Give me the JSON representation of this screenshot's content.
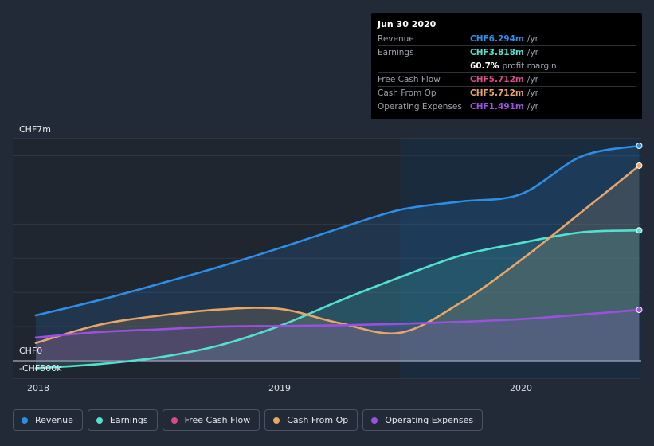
{
  "chart_data": {
    "type": "area",
    "x_ticks": [
      {
        "label": "2018",
        "x": 2018.0
      },
      {
        "label": "2019",
        "x": 2019.0
      },
      {
        "label": "2020",
        "x": 2020.0
      }
    ],
    "y_labels": [
      {
        "label": "CHF7m",
        "value": 7
      },
      {
        "label": "CHF0",
        "value": 0
      },
      {
        "label": "-CHF500k",
        "value": -0.5
      }
    ],
    "ylim": [
      -0.5,
      7
    ],
    "highlight_from": 2019.5,
    "series": [
      {
        "key": "revenue",
        "name": "Revenue",
        "color": "#2d8ee8",
        "x": [
          2017.99,
          2018.25,
          2018.5,
          2018.75,
          2019.0,
          2019.25,
          2019.5,
          2019.75,
          2020.0,
          2020.25,
          2020.49
        ],
        "values": [
          1.33,
          1.77,
          2.25,
          2.75,
          3.3,
          3.88,
          4.42,
          4.66,
          4.88,
          5.98,
          6.294
        ]
      },
      {
        "key": "earnings",
        "name": "Earnings",
        "color": "#53e0cf",
        "x": [
          2017.99,
          2018.25,
          2018.5,
          2018.75,
          2019.0,
          2019.25,
          2019.5,
          2019.75,
          2020.0,
          2020.25,
          2020.49
        ],
        "values": [
          -0.22,
          -0.1,
          0.1,
          0.45,
          1.02,
          1.76,
          2.45,
          3.08,
          3.45,
          3.76,
          3.818
        ]
      },
      {
        "key": "fcf",
        "name": "Free Cash Flow",
        "color": "#d94a8c",
        "x": [],
        "values": []
      },
      {
        "key": "cfo",
        "name": "Cash From Op",
        "color": "#e8a667",
        "x": [
          2017.99,
          2018.25,
          2018.5,
          2018.75,
          2019.0,
          2019.25,
          2019.5,
          2019.75,
          2020.0,
          2020.25,
          2020.49
        ],
        "values": [
          0.52,
          1.05,
          1.32,
          1.5,
          1.52,
          1.1,
          0.82,
          1.7,
          2.95,
          4.35,
          5.712
        ]
      },
      {
        "key": "opex",
        "name": "Operating Expenses",
        "color": "#9b51e0",
        "x": [
          2017.99,
          2018.25,
          2018.5,
          2018.75,
          2019.0,
          2019.25,
          2019.5,
          2019.75,
          2020.0,
          2020.25,
          2020.49
        ],
        "values": [
          0.68,
          0.84,
          0.92,
          1.0,
          1.02,
          1.04,
          1.08,
          1.14,
          1.22,
          1.35,
          1.491
        ]
      }
    ]
  },
  "tooltip": {
    "date": "Jun 30 2020",
    "rows": [
      {
        "label": "Revenue",
        "value": "CHF6.294m",
        "unit": "/yr",
        "color": "#2d8ee8"
      },
      {
        "label": "Earnings",
        "value": "CHF3.818m",
        "unit": "/yr",
        "color": "#53e0cf"
      },
      {
        "label": "",
        "value": "60.7%",
        "unit": "profit margin",
        "color": "#ffffff"
      },
      {
        "label": "Free Cash Flow",
        "value": "CHF5.712m",
        "unit": "/yr",
        "color": "#d94a8c"
      },
      {
        "label": "Cash From Op",
        "value": "CHF5.712m",
        "unit": "/yr",
        "color": "#e8a667"
      },
      {
        "label": "Operating Expenses",
        "value": "CHF1.491m",
        "unit": "/yr",
        "color": "#9b51e0"
      }
    ]
  },
  "legend": [
    {
      "label": "Revenue",
      "color": "#2d8ee8"
    },
    {
      "label": "Earnings",
      "color": "#53e0cf"
    },
    {
      "label": "Free Cash Flow",
      "color": "#d94a8c"
    },
    {
      "label": "Cash From Op",
      "color": "#e8a667"
    },
    {
      "label": "Operating Expenses",
      "color": "#9b51e0"
    }
  ]
}
